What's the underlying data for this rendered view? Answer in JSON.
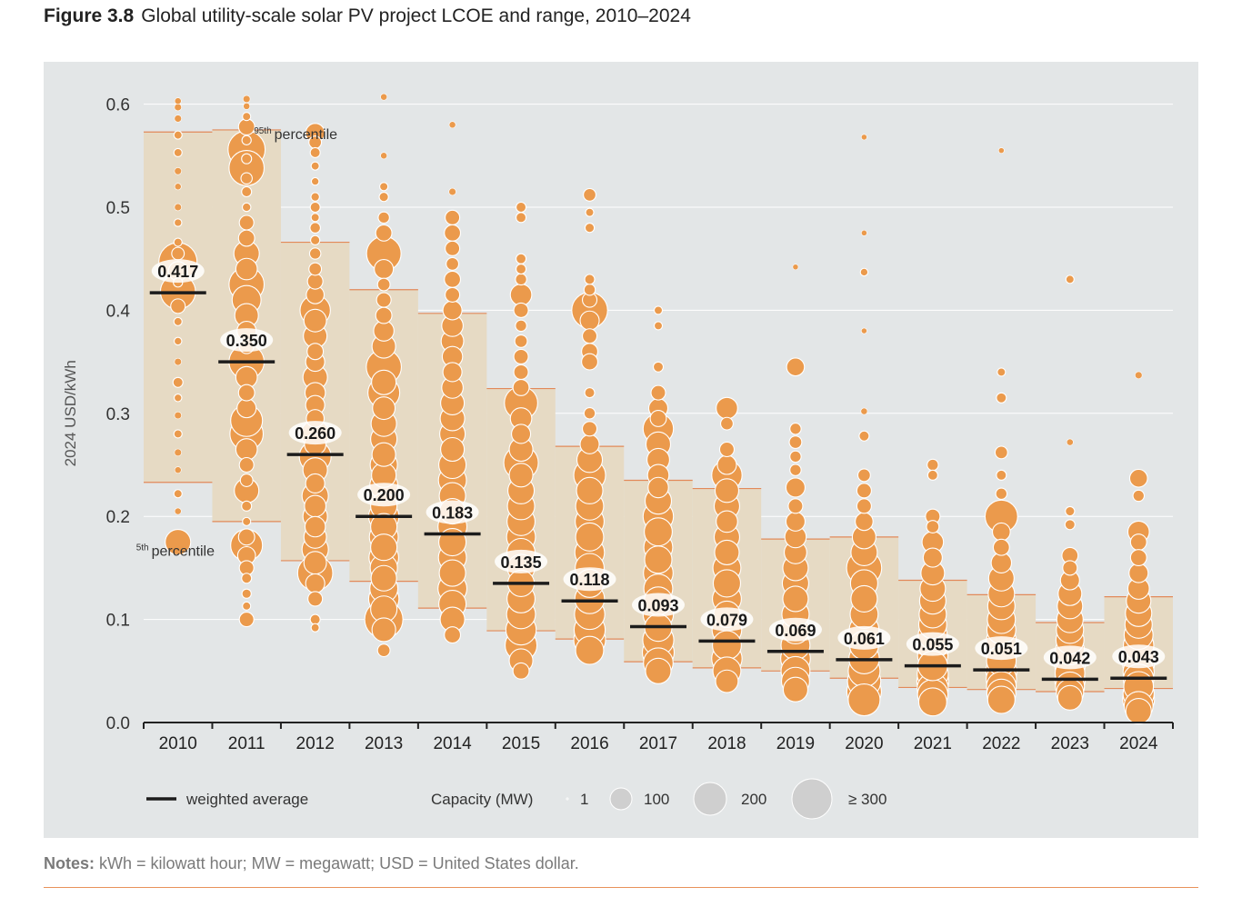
{
  "figure": {
    "number": "Figure 3.8",
    "title": "Global utility-scale solar PV project LCOE and range, 2010–2024"
  },
  "notes": {
    "label": "Notes:",
    "text": "kWh = kilowatt hour; MW = megawatt; USD = United States dollar."
  },
  "colors": {
    "panel_background": "#e3e6e7",
    "range_box_fill": "#e6dac4",
    "range_box_line": "#e2895a",
    "bubble": "#eb9a4c",
    "bubble_outline": "#ffffff",
    "average_line": "#1c1c1c",
    "gridline": "#ffffff",
    "note_rule": "#e8925a"
  },
  "chart_data": {
    "type": "scatter",
    "title": "Global utility-scale solar PV project LCOE and range, 2010–2024",
    "ylabel": "2024 USD/kWh",
    "xlabel": "",
    "ylim": [
      0,
      0.6
    ],
    "yticks": [
      "0.0",
      "0.1",
      "0.2",
      "0.3",
      "0.4",
      "0.5",
      "0.6"
    ],
    "grid": true,
    "categories": [
      "2010",
      "2011",
      "2012",
      "2013",
      "2014",
      "2015",
      "2016",
      "2017",
      "2018",
      "2019",
      "2020",
      "2021",
      "2022",
      "2023",
      "2024"
    ],
    "weighted_average": [
      0.417,
      0.35,
      0.26,
      0.2,
      0.183,
      0.135,
      0.118,
      0.093,
      0.079,
      0.069,
      0.061,
      0.055,
      0.051,
      0.042,
      0.043
    ],
    "weighted_average_labels": [
      "0.417",
      "0.350",
      "0.260",
      "0.200",
      "0.183",
      "0.135",
      "0.118",
      "0.093",
      "0.079",
      "0.069",
      "0.061",
      "0.055",
      "0.051",
      "0.042",
      "0.043"
    ],
    "percentile_5th": [
      0.233,
      0.195,
      0.157,
      0.137,
      0.111,
      0.089,
      0.081,
      0.059,
      0.053,
      0.05,
      0.043,
      0.034,
      0.032,
      0.03,
      0.033
    ],
    "percentile_95th": [
      0.573,
      0.575,
      0.466,
      0.42,
      0.397,
      0.324,
      0.268,
      0.235,
      0.227,
      0.178,
      0.18,
      0.138,
      0.124,
      0.097,
      0.122
    ],
    "annotations": {
      "p95": {
        "text": "percentile",
        "sup": "95th",
        "year": "2011",
        "value": 0.566
      },
      "p5": {
        "text": "percentile",
        "sup": "5th",
        "year": "2010",
        "value": 0.162
      }
    },
    "legend": {
      "position": "bottom",
      "average_label": "weighted average",
      "capacity_title": "Capacity (MW)",
      "sizes": [
        {
          "label": "1",
          "mw": 1
        },
        {
          "label": "100",
          "mw": 100
        },
        {
          "label": "200",
          "mw": 200
        },
        {
          "label": "≥ 300",
          "mw": 300
        }
      ]
    },
    "projects": [
      {
        "year": "2010",
        "lcoe": [
          0.603,
          0.597,
          0.586,
          0.57,
          0.553,
          0.535,
          0.52,
          0.5,
          0.485,
          0.466,
          0.455,
          0.447,
          0.438,
          0.427,
          0.418,
          0.404,
          0.389,
          0.37,
          0.35,
          0.33,
          0.315,
          0.298,
          0.28,
          0.262,
          0.245,
          0.222,
          0.205,
          0.175
        ],
        "mw": [
          2,
          3,
          3,
          5,
          5,
          3,
          2,
          3,
          4,
          5,
          20,
          320,
          60,
          8,
          250,
          30,
          5,
          4,
          3,
          10,
          4,
          3,
          5,
          3,
          2,
          5,
          2,
          120
        ]
      },
      {
        "year": "2011",
        "lcoe": [
          0.605,
          0.598,
          0.588,
          0.578,
          0.565,
          0.556,
          0.547,
          0.538,
          0.528,
          0.515,
          0.5,
          0.485,
          0.47,
          0.455,
          0.44,
          0.425,
          0.41,
          0.395,
          0.38,
          0.365,
          0.35,
          0.335,
          0.32,
          0.305,
          0.293,
          0.28,
          0.265,
          0.25,
          0.235,
          0.225,
          0.21,
          0.195,
          0.18,
          0.172,
          0.162,
          0.15,
          0.14,
          0.125,
          0.113,
          0.1
        ],
        "mw": [
          3,
          2,
          5,
          40,
          8,
          280,
          10,
          250,
          15,
          10,
          6,
          30,
          40,
          120,
          80,
          250,
          160,
          100,
          60,
          30,
          250,
          80,
          40,
          60,
          200,
          220,
          80,
          30,
          20,
          110,
          10,
          5,
          40,
          200,
          50,
          30,
          10,
          8,
          5,
          30
        ]
      },
      {
        "year": "2012",
        "lcoe": [
          0.572,
          0.563,
          0.553,
          0.54,
          0.525,
          0.51,
          0.5,
          0.49,
          0.48,
          0.468,
          0.455,
          0.44,
          0.428,
          0.415,
          0.4,
          0.39,
          0.375,
          0.36,
          0.35,
          0.335,
          0.32,
          0.308,
          0.295,
          0.28,
          0.27,
          0.258,
          0.245,
          0.232,
          0.22,
          0.21,
          0.2,
          0.19,
          0.18,
          0.168,
          0.155,
          0.145,
          0.135,
          0.12,
          0.1,
          0.092
        ],
        "mw": [
          60,
          20,
          10,
          5,
          4,
          6,
          10,
          5,
          12,
          8,
          15,
          20,
          35,
          50,
          180,
          90,
          100,
          40,
          60,
          110,
          70,
          60,
          50,
          150,
          80,
          200,
          110,
          60,
          130,
          80,
          110,
          70,
          90,
          130,
          90,
          250,
          60,
          30,
          10,
          5
        ]
      },
      {
        "year": "2013",
        "lcoe": [
          0.607,
          0.55,
          0.52,
          0.51,
          0.49,
          0.475,
          0.455,
          0.44,
          0.425,
          0.41,
          0.395,
          0.38,
          0.365,
          0.345,
          0.33,
          0.32,
          0.305,
          0.29,
          0.275,
          0.26,
          0.25,
          0.24,
          0.23,
          0.22,
          0.21,
          0.2,
          0.19,
          0.18,
          0.17,
          0.16,
          0.15,
          0.14,
          0.13,
          0.12,
          0.11,
          0.1,
          0.09,
          0.07
        ],
        "mw": [
          2,
          2,
          5,
          8,
          15,
          40,
          240,
          60,
          20,
          30,
          40,
          70,
          100,
          250,
          110,
          200,
          90,
          120,
          130,
          100,
          140,
          110,
          150,
          160,
          130,
          180,
          130,
          160,
          130,
          170,
          140,
          120,
          150,
          180,
          130,
          300,
          100,
          20
        ]
      },
      {
        "year": "2014",
        "lcoe": [
          0.58,
          0.515,
          0.49,
          0.475,
          0.46,
          0.445,
          0.43,
          0.415,
          0.4,
          0.385,
          0.37,
          0.355,
          0.34,
          0.325,
          0.31,
          0.295,
          0.28,
          0.265,
          0.25,
          0.235,
          0.22,
          0.205,
          0.19,
          0.175,
          0.16,
          0.145,
          0.13,
          0.115,
          0.1,
          0.085
        ],
        "mw": [
          2,
          3,
          30,
          40,
          30,
          20,
          40,
          30,
          60,
          80,
          90,
          70,
          60,
          80,
          100,
          110,
          120,
          100,
          140,
          150,
          130,
          120,
          160,
          140,
          150,
          130,
          160,
          140,
          110,
          40
        ]
      },
      {
        "year": "2015",
        "lcoe": [
          0.5,
          0.49,
          0.45,
          0.44,
          0.43,
          0.415,
          0.4,
          0.385,
          0.37,
          0.355,
          0.34,
          0.325,
          0.31,
          0.295,
          0.28,
          0.265,
          0.252,
          0.24,
          0.225,
          0.21,
          0.195,
          0.18,
          0.165,
          0.15,
          0.135,
          0.12,
          0.105,
          0.09,
          0.075,
          0.06,
          0.05
        ],
        "mw": [
          10,
          10,
          10,
          10,
          15,
          80,
          30,
          15,
          20,
          30,
          30,
          40,
          220,
          80,
          60,
          100,
          240,
          100,
          130,
          140,
          150,
          160,
          150,
          140,
          130,
          150,
          160,
          180,
          200,
          100,
          40
        ]
      },
      {
        "year": "2016",
        "lcoe": [
          0.512,
          0.495,
          0.48,
          0.43,
          0.42,
          0.41,
          0.4,
          0.39,
          0.375,
          0.36,
          0.35,
          0.32,
          0.3,
          0.285,
          0.27,
          0.255,
          0.24,
          0.225,
          0.21,
          0.195,
          0.18,
          0.165,
          0.15,
          0.135,
          0.12,
          0.105,
          0.09,
          0.08,
          0.07
        ],
        "mw": [
          20,
          5,
          8,
          10,
          15,
          30,
          260,
          60,
          30,
          40,
          40,
          10,
          15,
          30,
          60,
          120,
          200,
          130,
          150,
          160,
          150,
          170,
          160,
          150,
          170,
          180,
          190,
          200,
          150
        ]
      },
      {
        "year": "2017",
        "lcoe": [
          0.4,
          0.385,
          0.345,
          0.32,
          0.305,
          0.295,
          0.285,
          0.27,
          0.255,
          0.24,
          0.228,
          0.215,
          0.2,
          0.185,
          0.17,
          0.158,
          0.145,
          0.13,
          0.118,
          0.105,
          0.092,
          0.08,
          0.068,
          0.058,
          0.05
        ],
        "mw": [
          5,
          5,
          10,
          30,
          60,
          40,
          180,
          110,
          90,
          80,
          70,
          130,
          180,
          150,
          160,
          140,
          170,
          160,
          150,
          180,
          140,
          190,
          200,
          170,
          120
        ]
      },
      {
        "year": "2018",
        "lcoe": [
          0.305,
          0.29,
          0.265,
          0.25,
          0.24,
          0.225,
          0.21,
          0.195,
          0.18,
          0.165,
          0.15,
          0.135,
          0.12,
          0.105,
          0.09,
          0.075,
          0.062,
          0.05,
          0.04
        ],
        "mw": [
          80,
          20,
          30,
          60,
          180,
          100,
          120,
          80,
          120,
          110,
          150,
          140,
          160,
          130,
          170,
          160,
          180,
          150,
          90
        ]
      },
      {
        "year": "2019",
        "lcoe": [
          0.442,
          0.345,
          0.285,
          0.272,
          0.258,
          0.245,
          0.228,
          0.21,
          0.195,
          0.18,
          0.165,
          0.15,
          0.135,
          0.12,
          0.105,
          0.09,
          0.075,
          0.062,
          0.05,
          0.04,
          0.032
        ],
        "mw": [
          1,
          50,
          15,
          20,
          15,
          15,
          60,
          30,
          60,
          80,
          90,
          120,
          130,
          120,
          140,
          150,
          160,
          170,
          160,
          150,
          110
        ]
      },
      {
        "year": "2020",
        "lcoe": [
          0.568,
          0.475,
          0.437,
          0.38,
          0.302,
          0.278,
          0.24,
          0.225,
          0.21,
          0.195,
          0.18,
          0.165,
          0.15,
          0.135,
          0.12,
          0.105,
          0.09,
          0.075,
          0.062,
          0.05,
          0.04,
          0.03,
          0.022
        ],
        "mw": [
          1,
          1,
          4,
          1,
          2,
          10,
          20,
          30,
          30,
          50,
          100,
          130,
          250,
          140,
          130,
          150,
          170,
          160,
          180,
          200,
          220,
          240,
          200
        ]
      },
      {
        "year": "2021",
        "lcoe": [
          0.25,
          0.24,
          0.2,
          0.19,
          0.175,
          0.16,
          0.145,
          0.13,
          0.118,
          0.105,
          0.095,
          0.085,
          0.075,
          0.065,
          0.055,
          0.047,
          0.04,
          0.033,
          0.027,
          0.02
        ],
        "mw": [
          15,
          10,
          30,
          20,
          80,
          60,
          100,
          120,
          130,
          140,
          150,
          160,
          170,
          180,
          170,
          190,
          200,
          190,
          180,
          150
        ]
      },
      {
        "year": "2022",
        "lcoe": [
          0.555,
          0.34,
          0.315,
          0.262,
          0.24,
          0.222,
          0.2,
          0.185,
          0.17,
          0.155,
          0.14,
          0.125,
          0.113,
          0.1,
          0.09,
          0.08,
          0.07,
          0.06,
          0.05,
          0.042,
          0.035,
          0.028,
          0.022
        ],
        "mw": [
          1,
          5,
          10,
          20,
          10,
          15,
          210,
          50,
          40,
          70,
          120,
          130,
          140,
          150,
          160,
          170,
          180,
          170,
          190,
          180,
          170,
          160,
          140
        ]
      },
      {
        "year": "2023",
        "lcoe": [
          0.43,
          0.272,
          0.205,
          0.192,
          0.162,
          0.15,
          0.138,
          0.125,
          0.113,
          0.1,
          0.09,
          0.08,
          0.07,
          0.062,
          0.055,
          0.048,
          0.041,
          0.035,
          0.029,
          0.024
        ],
        "mw": [
          5,
          2,
          8,
          10,
          40,
          30,
          60,
          100,
          120,
          130,
          140,
          150,
          160,
          170,
          180,
          170,
          180,
          160,
          140,
          110
        ]
      },
      {
        "year": "2024",
        "lcoe": [
          0.337,
          0.237,
          0.22,
          0.185,
          0.175,
          0.16,
          0.145,
          0.13,
          0.118,
          0.106,
          0.095,
          0.085,
          0.075,
          0.066,
          0.057,
          0.049,
          0.042,
          0.035,
          0.028,
          0.022,
          0.016,
          0.011
        ],
        "mw": [
          3,
          50,
          15,
          80,
          40,
          40,
          60,
          80,
          110,
          130,
          140,
          160,
          180,
          190,
          200,
          190,
          180,
          170,
          190,
          200,
          160,
          120
        ]
      }
    ]
  }
}
